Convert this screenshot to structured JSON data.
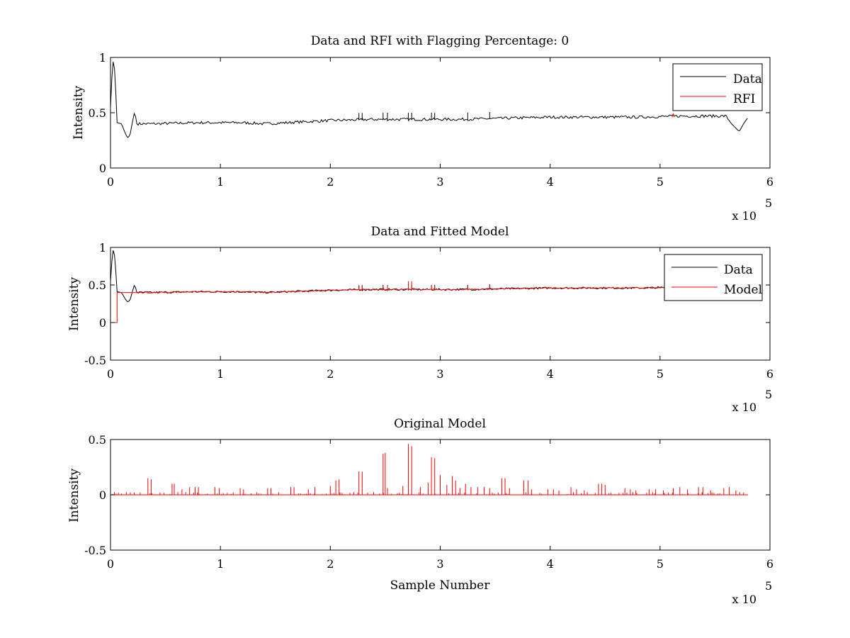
{
  "chart_data": [
    {
      "type": "line",
      "title": "Data and RFI with Flagging Percentage: 0",
      "xlabel": "",
      "ylabel": "Intensity",
      "xlim": [
        0,
        600000
      ],
      "ylim": [
        0,
        1
      ],
      "xticks": [
        0,
        1,
        2,
        3,
        4,
        5,
        6
      ],
      "yticks": [
        0,
        0.5,
        1
      ],
      "ytick_labels": [
        "0",
        "0.5",
        "1"
      ],
      "x_exponent_label": "x 10",
      "x_exponent_power": "5",
      "legend_position": "top-right",
      "grid": false,
      "series": [
        {
          "name": "Data",
          "color": "#000000",
          "x": [
            0,
            2000,
            4000,
            6000,
            10000,
            14000,
            16000,
            18000,
            20000,
            22000,
            24000,
            40000,
            80000,
            120000,
            140000,
            160000,
            200000,
            240000,
            280000,
            320000,
            360000,
            400000,
            440000,
            480000,
            520000,
            560000,
            565000,
            572000,
            576000,
            580000
          ],
          "y": [
            0.55,
            0.98,
            0.88,
            0.41,
            0.4,
            0.3,
            0.27,
            0.31,
            0.42,
            0.51,
            0.4,
            0.4,
            0.41,
            0.41,
            0.4,
            0.41,
            0.43,
            0.44,
            0.44,
            0.44,
            0.45,
            0.46,
            0.46,
            0.46,
            0.47,
            0.47,
            0.4,
            0.33,
            0.4,
            0.46
          ]
        },
        {
          "name": "RFI",
          "color": "#ff0000",
          "x": [
            511000,
            512000,
            513000
          ],
          "y": [
            0.46,
            0.49,
            0.46
          ]
        }
      ]
    },
    {
      "type": "line",
      "title": "Data and Fitted Model",
      "xlabel": "",
      "ylabel": "Intensity",
      "xlim": [
        0,
        600000
      ],
      "ylim": [
        -0.5,
        1
      ],
      "xticks": [
        0,
        1,
        2,
        3,
        4,
        5,
        6
      ],
      "yticks": [
        -0.5,
        0,
        0.5,
        1
      ],
      "ytick_labels": [
        "-0.5",
        "0",
        "0.5",
        "1"
      ],
      "x_exponent_label": "x 10",
      "x_exponent_power": "5",
      "legend_position": "top-right",
      "grid": false,
      "series": [
        {
          "name": "Data",
          "color": "#000000",
          "x": [
            0,
            2000,
            4000,
            6000,
            10000,
            14000,
            16000,
            18000,
            20000,
            22000,
            24000,
            40000,
            80000,
            120000,
            140000,
            160000,
            200000,
            240000,
            280000,
            320000,
            360000,
            400000,
            440000,
            480000,
            520000,
            560000,
            580000
          ],
          "y": [
            0.55,
            0.98,
            0.88,
            0.41,
            0.4,
            0.3,
            0.27,
            0.31,
            0.42,
            0.51,
            0.4,
            0.4,
            0.41,
            0.41,
            0.4,
            0.41,
            0.43,
            0.44,
            0.44,
            0.44,
            0.45,
            0.46,
            0.46,
            0.46,
            0.47,
            0.47,
            0.46
          ]
        },
        {
          "name": "Model",
          "color": "#ff0000",
          "x": [
            0,
            6000,
            6000,
            40000,
            80000,
            120000,
            140000,
            160000,
            200000,
            240000,
            280000,
            320000,
            360000,
            400000,
            440000,
            480000,
            520000,
            560000,
            580000
          ],
          "y": [
            0,
            0,
            0.4,
            0.4,
            0.41,
            0.41,
            0.4,
            0.41,
            0.43,
            0.44,
            0.44,
            0.44,
            0.45,
            0.46,
            0.46,
            0.46,
            0.47,
            0.47,
            0.46
          ]
        }
      ]
    },
    {
      "type": "line",
      "title": "Original Model",
      "xlabel": "Sample Number",
      "ylabel": "Intensity",
      "xlim": [
        0,
        600000
      ],
      "ylim": [
        -0.5,
        0.5
      ],
      "xticks": [
        0,
        1,
        2,
        3,
        4,
        5,
        6
      ],
      "yticks": [
        -0.5,
        0,
        0.5
      ],
      "ytick_labels": [
        "-0.5",
        "0",
        "0.5"
      ],
      "x_exponent_label": "x 10",
      "x_exponent_power": "5",
      "grid": false,
      "series": [
        {
          "color": "#ff0000",
          "baseline": 0,
          "x_range": [
            0,
            580000
          ],
          "spikes_x": [
            5000,
            10000,
            34000,
            37000,
            45000,
            56000,
            58000,
            65000,
            72000,
            77000,
            80000,
            95000,
            99000,
            118000,
            121000,
            143000,
            146000,
            164000,
            167000,
            180000,
            186000,
            200000,
            205000,
            208000,
            226000,
            229000,
            248000,
            250000,
            252000,
            266000,
            271000,
            274000,
            282000,
            289000,
            292000,
            295000,
            300000,
            306000,
            311000,
            314000,
            318000,
            323000,
            328000,
            334000,
            340000,
            345000,
            356000,
            359000,
            363000,
            376000,
            380000,
            383000,
            398000,
            403000,
            408000,
            419000,
            424000,
            431000,
            444000,
            447000,
            450000,
            468000,
            473000,
            478000,
            490000,
            496000,
            503000,
            512000,
            518000,
            525000,
            535000,
            539000,
            546000,
            558000,
            563000,
            569000
          ],
          "spikes_y": [
            0.01,
            0.01,
            0.15,
            0.14,
            0.02,
            0.1,
            0.1,
            0.05,
            0.07,
            0.07,
            0.07,
            0.07,
            0.06,
            0.06,
            0.05,
            0.06,
            0.06,
            0.07,
            0.07,
            0.05,
            0.07,
            0.08,
            0.13,
            0.14,
            0.21,
            0.21,
            0.37,
            0.38,
            0.06,
            0.08,
            0.46,
            0.44,
            0.07,
            0.11,
            0.34,
            0.33,
            0.18,
            0.09,
            0.17,
            0.13,
            0.06,
            0.1,
            0.07,
            0.07,
            0.07,
            0.06,
            0.15,
            0.15,
            0.06,
            0.13,
            0.13,
            0.05,
            0.05,
            0.05,
            0.04,
            0.07,
            0.05,
            0.04,
            0.1,
            0.1,
            0.09,
            0.06,
            0.05,
            0.04,
            0.05,
            0.05,
            0.04,
            0.06,
            0.07,
            0.05,
            0.07,
            0.07,
            0.04,
            0.06,
            0.07,
            0.04
          ]
        }
      ]
    }
  ]
}
